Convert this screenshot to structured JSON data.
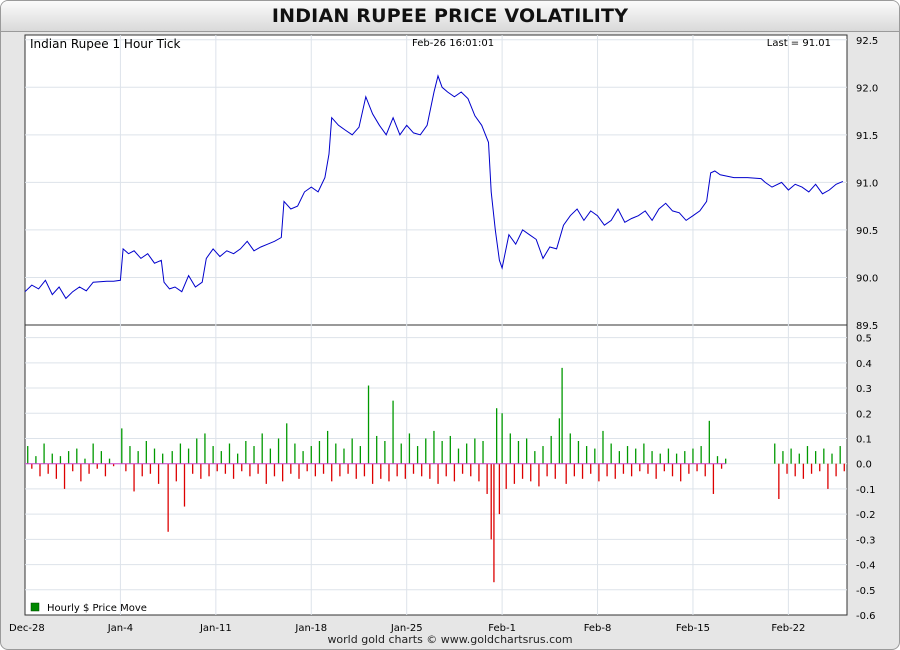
{
  "header": {
    "title": "INDIAN RUPEE PRICE VOLATILITY"
  },
  "footer": {
    "text": "world gold charts © www.goldchartsrus.com"
  },
  "chart_data": [
    {
      "type": "line",
      "title": "Indian Rupee 1 Hour Tick",
      "timestamp": "Feb-26  16:01:01",
      "last": "Last = 91.01",
      "ylim": [
        89.5,
        92.55
      ],
      "yticks": [
        89.5,
        90.0,
        90.5,
        91.0,
        91.5,
        92.0,
        92.5
      ],
      "x_tick_labels": [
        "Dec-28",
        "Jan-4",
        "Jan-11",
        "Jan-18",
        "Jan-25",
        "Feb-1",
        "Feb-8",
        "Feb-15",
        "Feb-22"
      ],
      "xlim_days": [
        0,
        60.3
      ],
      "grid": true,
      "series_color": "#0000cc",
      "series": [
        {
          "points": [
            [
              0,
              89.85
            ],
            [
              0.5,
              89.92
            ],
            [
              1,
              89.88
            ],
            [
              1.5,
              89.97
            ],
            [
              2,
              89.82
            ],
            [
              2.5,
              89.9
            ],
            [
              3,
              89.78
            ],
            [
              3.5,
              89.85
            ],
            [
              4,
              89.9
            ],
            [
              4.5,
              89.86
            ],
            [
              5,
              89.95
            ],
            [
              6,
              89.96
            ],
            [
              6.5,
              89.96
            ],
            [
              7,
              89.97
            ],
            [
              7.2,
              90.3
            ],
            [
              7.6,
              90.25
            ],
            [
              8,
              90.28
            ],
            [
              8.5,
              90.2
            ],
            [
              9,
              90.25
            ],
            [
              9.5,
              90.15
            ],
            [
              10,
              90.18
            ],
            [
              10.2,
              89.95
            ],
            [
              10.6,
              89.88
            ],
            [
              11,
              89.9
            ],
            [
              11.5,
              89.85
            ],
            [
              12,
              90.02
            ],
            [
              12.5,
              89.9
            ],
            [
              13,
              89.95
            ],
            [
              13.3,
              90.2
            ],
            [
              13.8,
              90.3
            ],
            [
              14.3,
              90.22
            ],
            [
              14.8,
              90.28
            ],
            [
              15.3,
              90.25
            ],
            [
              15.8,
              90.3
            ],
            [
              16.3,
              90.38
            ],
            [
              16.8,
              90.28
            ],
            [
              17.3,
              90.32
            ],
            [
              17.8,
              90.35
            ],
            [
              18.3,
              90.38
            ],
            [
              18.8,
              90.42
            ],
            [
              19,
              90.8
            ],
            [
              19.5,
              90.72
            ],
            [
              20,
              90.75
            ],
            [
              20.5,
              90.9
            ],
            [
              21,
              90.95
            ],
            [
              21.5,
              90.9
            ],
            [
              22,
              91.05
            ],
            [
              22.3,
              91.3
            ],
            [
              22.5,
              91.68
            ],
            [
              23,
              91.6
            ],
            [
              23.5,
              91.55
            ],
            [
              24,
              91.5
            ],
            [
              24.5,
              91.58
            ],
            [
              25,
              91.9
            ],
            [
              25.5,
              91.72
            ],
            [
              26,
              91.6
            ],
            [
              26.5,
              91.5
            ],
            [
              27,
              91.68
            ],
            [
              27.5,
              91.5
            ],
            [
              28,
              91.6
            ],
            [
              28.5,
              91.52
            ],
            [
              29,
              91.5
            ],
            [
              29.5,
              91.6
            ],
            [
              30,
              91.95
            ],
            [
              30.3,
              92.12
            ],
            [
              30.6,
              92.0
            ],
            [
              31,
              91.95
            ],
            [
              31.5,
              91.9
            ],
            [
              32,
              91.95
            ],
            [
              32.5,
              91.88
            ],
            [
              33,
              91.7
            ],
            [
              33.5,
              91.6
            ],
            [
              34,
              91.42
            ],
            [
              34.2,
              90.9
            ],
            [
              34.5,
              90.5
            ],
            [
              34.8,
              90.18
            ],
            [
              35,
              90.1
            ],
            [
              35.5,
              90.45
            ],
            [
              36,
              90.35
            ],
            [
              36.5,
              90.5
            ],
            [
              37,
              90.45
            ],
            [
              37.5,
              90.4
            ],
            [
              38,
              90.2
            ],
            [
              38.5,
              90.32
            ],
            [
              39,
              90.3
            ],
            [
              39.5,
              90.55
            ],
            [
              40,
              90.65
            ],
            [
              40.5,
              90.72
            ],
            [
              41,
              90.6
            ],
            [
              41.5,
              90.7
            ],
            [
              42,
              90.65
            ],
            [
              42.5,
              90.55
            ],
            [
              43,
              90.6
            ],
            [
              43.5,
              90.72
            ],
            [
              44,
              90.58
            ],
            [
              44.5,
              90.62
            ],
            [
              45,
              90.65
            ],
            [
              45.5,
              90.7
            ],
            [
              46,
              90.6
            ],
            [
              46.5,
              90.72
            ],
            [
              47,
              90.78
            ],
            [
              47.5,
              90.7
            ],
            [
              48,
              90.68
            ],
            [
              48.5,
              90.6
            ],
            [
              49,
              90.65
            ],
            [
              49.5,
              90.7
            ],
            [
              50,
              90.8
            ],
            [
              50.3,
              91.1
            ],
            [
              50.6,
              91.12
            ],
            [
              51,
              91.08
            ],
            [
              52,
              91.05
            ],
            [
              53,
              91.05
            ],
            [
              54,
              91.04
            ],
            [
              54.3,
              91.0
            ],
            [
              54.8,
              90.95
            ],
            [
              55.5,
              91.0
            ],
            [
              56,
              90.92
            ],
            [
              56.5,
              90.98
            ],
            [
              57,
              90.95
            ],
            [
              57.5,
              90.9
            ],
            [
              58,
              90.98
            ],
            [
              58.5,
              90.88
            ],
            [
              59,
              90.92
            ],
            [
              59.5,
              90.98
            ],
            [
              60,
              91.01
            ]
          ]
        }
      ]
    },
    {
      "type": "bar",
      "legend": "Hourly $ Price Move",
      "ylim": [
        -0.6,
        0.55
      ],
      "yticks": [
        -0.6,
        -0.5,
        -0.4,
        -0.3,
        -0.2,
        -0.1,
        0.0,
        0.1,
        0.2,
        0.3,
        0.4,
        0.5
      ],
      "positive_color": "#009900",
      "negative_color": "#dd0000",
      "zero_line_color": "#cc44cc",
      "moves": [
        [
          0.2,
          0.07
        ],
        [
          0.5,
          -0.02
        ],
        [
          0.8,
          0.03
        ],
        [
          1.1,
          -0.05
        ],
        [
          1.4,
          0.08
        ],
        [
          1.7,
          -0.04
        ],
        [
          2.0,
          0.04
        ],
        [
          2.3,
          -0.06
        ],
        [
          2.6,
          0.03
        ],
        [
          2.9,
          -0.1
        ],
        [
          3.2,
          0.05
        ],
        [
          3.5,
          -0.03
        ],
        [
          3.8,
          0.06
        ],
        [
          4.1,
          -0.07
        ],
        [
          4.4,
          0.02
        ],
        [
          4.7,
          -0.04
        ],
        [
          5.0,
          0.08
        ],
        [
          5.3,
          -0.02
        ],
        [
          5.6,
          0.05
        ],
        [
          5.9,
          -0.05
        ],
        [
          6.2,
          0.02
        ],
        [
          6.5,
          -0.01
        ],
        [
          7.1,
          0.14
        ],
        [
          7.4,
          -0.03
        ],
        [
          7.7,
          0.07
        ],
        [
          8.0,
          -0.11
        ],
        [
          8.3,
          0.05
        ],
        [
          8.6,
          -0.05
        ],
        [
          8.9,
          0.09
        ],
        [
          9.2,
          -0.04
        ],
        [
          9.5,
          0.06
        ],
        [
          9.8,
          -0.08
        ],
        [
          10.1,
          0.04
        ],
        [
          10.5,
          -0.27
        ],
        [
          10.8,
          0.05
        ],
        [
          11.1,
          -0.07
        ],
        [
          11.4,
          0.08
        ],
        [
          11.7,
          -0.17
        ],
        [
          12.0,
          0.06
        ],
        [
          12.3,
          -0.04
        ],
        [
          12.6,
          0.1
        ],
        [
          12.9,
          -0.06
        ],
        [
          13.2,
          0.12
        ],
        [
          13.5,
          -0.05
        ],
        [
          13.8,
          0.07
        ],
        [
          14.1,
          -0.03
        ],
        [
          14.4,
          0.05
        ],
        [
          14.7,
          -0.04
        ],
        [
          15.0,
          0.08
        ],
        [
          15.3,
          -0.06
        ],
        [
          15.6,
          0.04
        ],
        [
          15.9,
          -0.03
        ],
        [
          16.2,
          0.09
        ],
        [
          16.5,
          -0.05
        ],
        [
          16.8,
          0.07
        ],
        [
          17.1,
          -0.04
        ],
        [
          17.4,
          0.12
        ],
        [
          17.7,
          -0.08
        ],
        [
          18.0,
          0.06
        ],
        [
          18.3,
          -0.05
        ],
        [
          18.6,
          0.1
        ],
        [
          18.9,
          -0.07
        ],
        [
          19.2,
          0.16
        ],
        [
          19.5,
          -0.04
        ],
        [
          19.8,
          0.08
        ],
        [
          20.1,
          -0.06
        ],
        [
          20.4,
          0.05
        ],
        [
          20.7,
          -0.03
        ],
        [
          21.0,
          0.07
        ],
        [
          21.3,
          -0.05
        ],
        [
          21.6,
          0.09
        ],
        [
          21.9,
          -0.04
        ],
        [
          22.2,
          0.13
        ],
        [
          22.5,
          -0.07
        ],
        [
          22.8,
          0.08
        ],
        [
          23.1,
          -0.05
        ],
        [
          23.4,
          0.06
        ],
        [
          23.7,
          -0.04
        ],
        [
          24.0,
          0.1
        ],
        [
          24.3,
          -0.06
        ],
        [
          24.6,
          0.07
        ],
        [
          24.9,
          -0.05
        ],
        [
          25.2,
          0.31
        ],
        [
          25.5,
          -0.08
        ],
        [
          25.8,
          0.11
        ],
        [
          26.1,
          -0.06
        ],
        [
          26.4,
          0.09
        ],
        [
          26.7,
          -0.07
        ],
        [
          27.0,
          0.25
        ],
        [
          27.3,
          -0.05
        ],
        [
          27.6,
          0.08
        ],
        [
          27.9,
          -0.06
        ],
        [
          28.2,
          0.12
        ],
        [
          28.5,
          -0.04
        ],
        [
          28.8,
          0.07
        ],
        [
          29.1,
          -0.05
        ],
        [
          29.4,
          0.1
        ],
        [
          29.7,
          -0.06
        ],
        [
          30.0,
          0.13
        ],
        [
          30.3,
          -0.08
        ],
        [
          30.6,
          0.09
        ],
        [
          30.9,
          -0.05
        ],
        [
          31.2,
          0.11
        ],
        [
          31.5,
          -0.07
        ],
        [
          31.8,
          0.06
        ],
        [
          32.1,
          -0.04
        ],
        [
          32.4,
          0.08
        ],
        [
          32.7,
          -0.05
        ],
        [
          33.0,
          0.1
        ],
        [
          33.3,
          -0.07
        ],
        [
          33.6,
          0.09
        ],
        [
          33.9,
          -0.12
        ],
        [
          34.2,
          -0.3
        ],
        [
          34.4,
          -0.47
        ],
        [
          34.6,
          0.22
        ],
        [
          34.8,
          -0.2
        ],
        [
          35.0,
          0.2
        ],
        [
          35.3,
          -0.1
        ],
        [
          35.6,
          0.12
        ],
        [
          35.9,
          -0.08
        ],
        [
          36.2,
          0.09
        ],
        [
          36.5,
          -0.06
        ],
        [
          36.8,
          0.1
        ],
        [
          37.1,
          -0.07
        ],
        [
          37.4,
          0.05
        ],
        [
          37.7,
          -0.09
        ],
        [
          38.0,
          0.07
        ],
        [
          38.3,
          -0.05
        ],
        [
          38.6,
          0.11
        ],
        [
          38.9,
          -0.06
        ],
        [
          39.2,
          0.18
        ],
        [
          39.4,
          0.38
        ],
        [
          39.7,
          -0.08
        ],
        [
          40.0,
          0.12
        ],
        [
          40.3,
          -0.05
        ],
        [
          40.6,
          0.09
        ],
        [
          40.9,
          -0.06
        ],
        [
          41.2,
          0.07
        ],
        [
          41.5,
          -0.04
        ],
        [
          41.8,
          0.06
        ],
        [
          42.1,
          -0.07
        ],
        [
          42.4,
          0.13
        ],
        [
          42.7,
          -0.05
        ],
        [
          43.0,
          0.08
        ],
        [
          43.3,
          -0.06
        ],
        [
          43.6,
          0.05
        ],
        [
          43.9,
          -0.04
        ],
        [
          44.2,
          0.07
        ],
        [
          44.5,
          -0.05
        ],
        [
          44.8,
          0.06
        ],
        [
          45.1,
          -0.03
        ],
        [
          45.4,
          0.08
        ],
        [
          45.7,
          -0.04
        ],
        [
          46.0,
          0.05
        ],
        [
          46.3,
          -0.06
        ],
        [
          46.6,
          0.04
        ],
        [
          46.9,
          -0.03
        ],
        [
          47.2,
          0.06
        ],
        [
          47.5,
          -0.05
        ],
        [
          47.8,
          0.04
        ],
        [
          48.1,
          -0.07
        ],
        [
          48.4,
          0.05
        ],
        [
          48.7,
          -0.04
        ],
        [
          49.0,
          0.06
        ],
        [
          49.3,
          -0.03
        ],
        [
          49.6,
          0.07
        ],
        [
          49.9,
          -0.05
        ],
        [
          50.2,
          0.17
        ],
        [
          50.5,
          -0.12
        ],
        [
          50.8,
          0.03
        ],
        [
          51.1,
          -0.02
        ],
        [
          51.4,
          0.02
        ],
        [
          55.0,
          0.08
        ],
        [
          55.3,
          -0.14
        ],
        [
          55.6,
          0.05
        ],
        [
          55.9,
          -0.04
        ],
        [
          56.2,
          0.06
        ],
        [
          56.5,
          -0.05
        ],
        [
          56.8,
          0.04
        ],
        [
          57.1,
          -0.06
        ],
        [
          57.4,
          0.07
        ],
        [
          57.7,
          -0.04
        ],
        [
          58.0,
          0.05
        ],
        [
          58.3,
          -0.03
        ],
        [
          58.6,
          0.06
        ],
        [
          58.9,
          -0.1
        ],
        [
          59.2,
          0.04
        ],
        [
          59.5,
          -0.05
        ],
        [
          59.8,
          0.07
        ],
        [
          60.1,
          -0.03
        ]
      ]
    }
  ]
}
